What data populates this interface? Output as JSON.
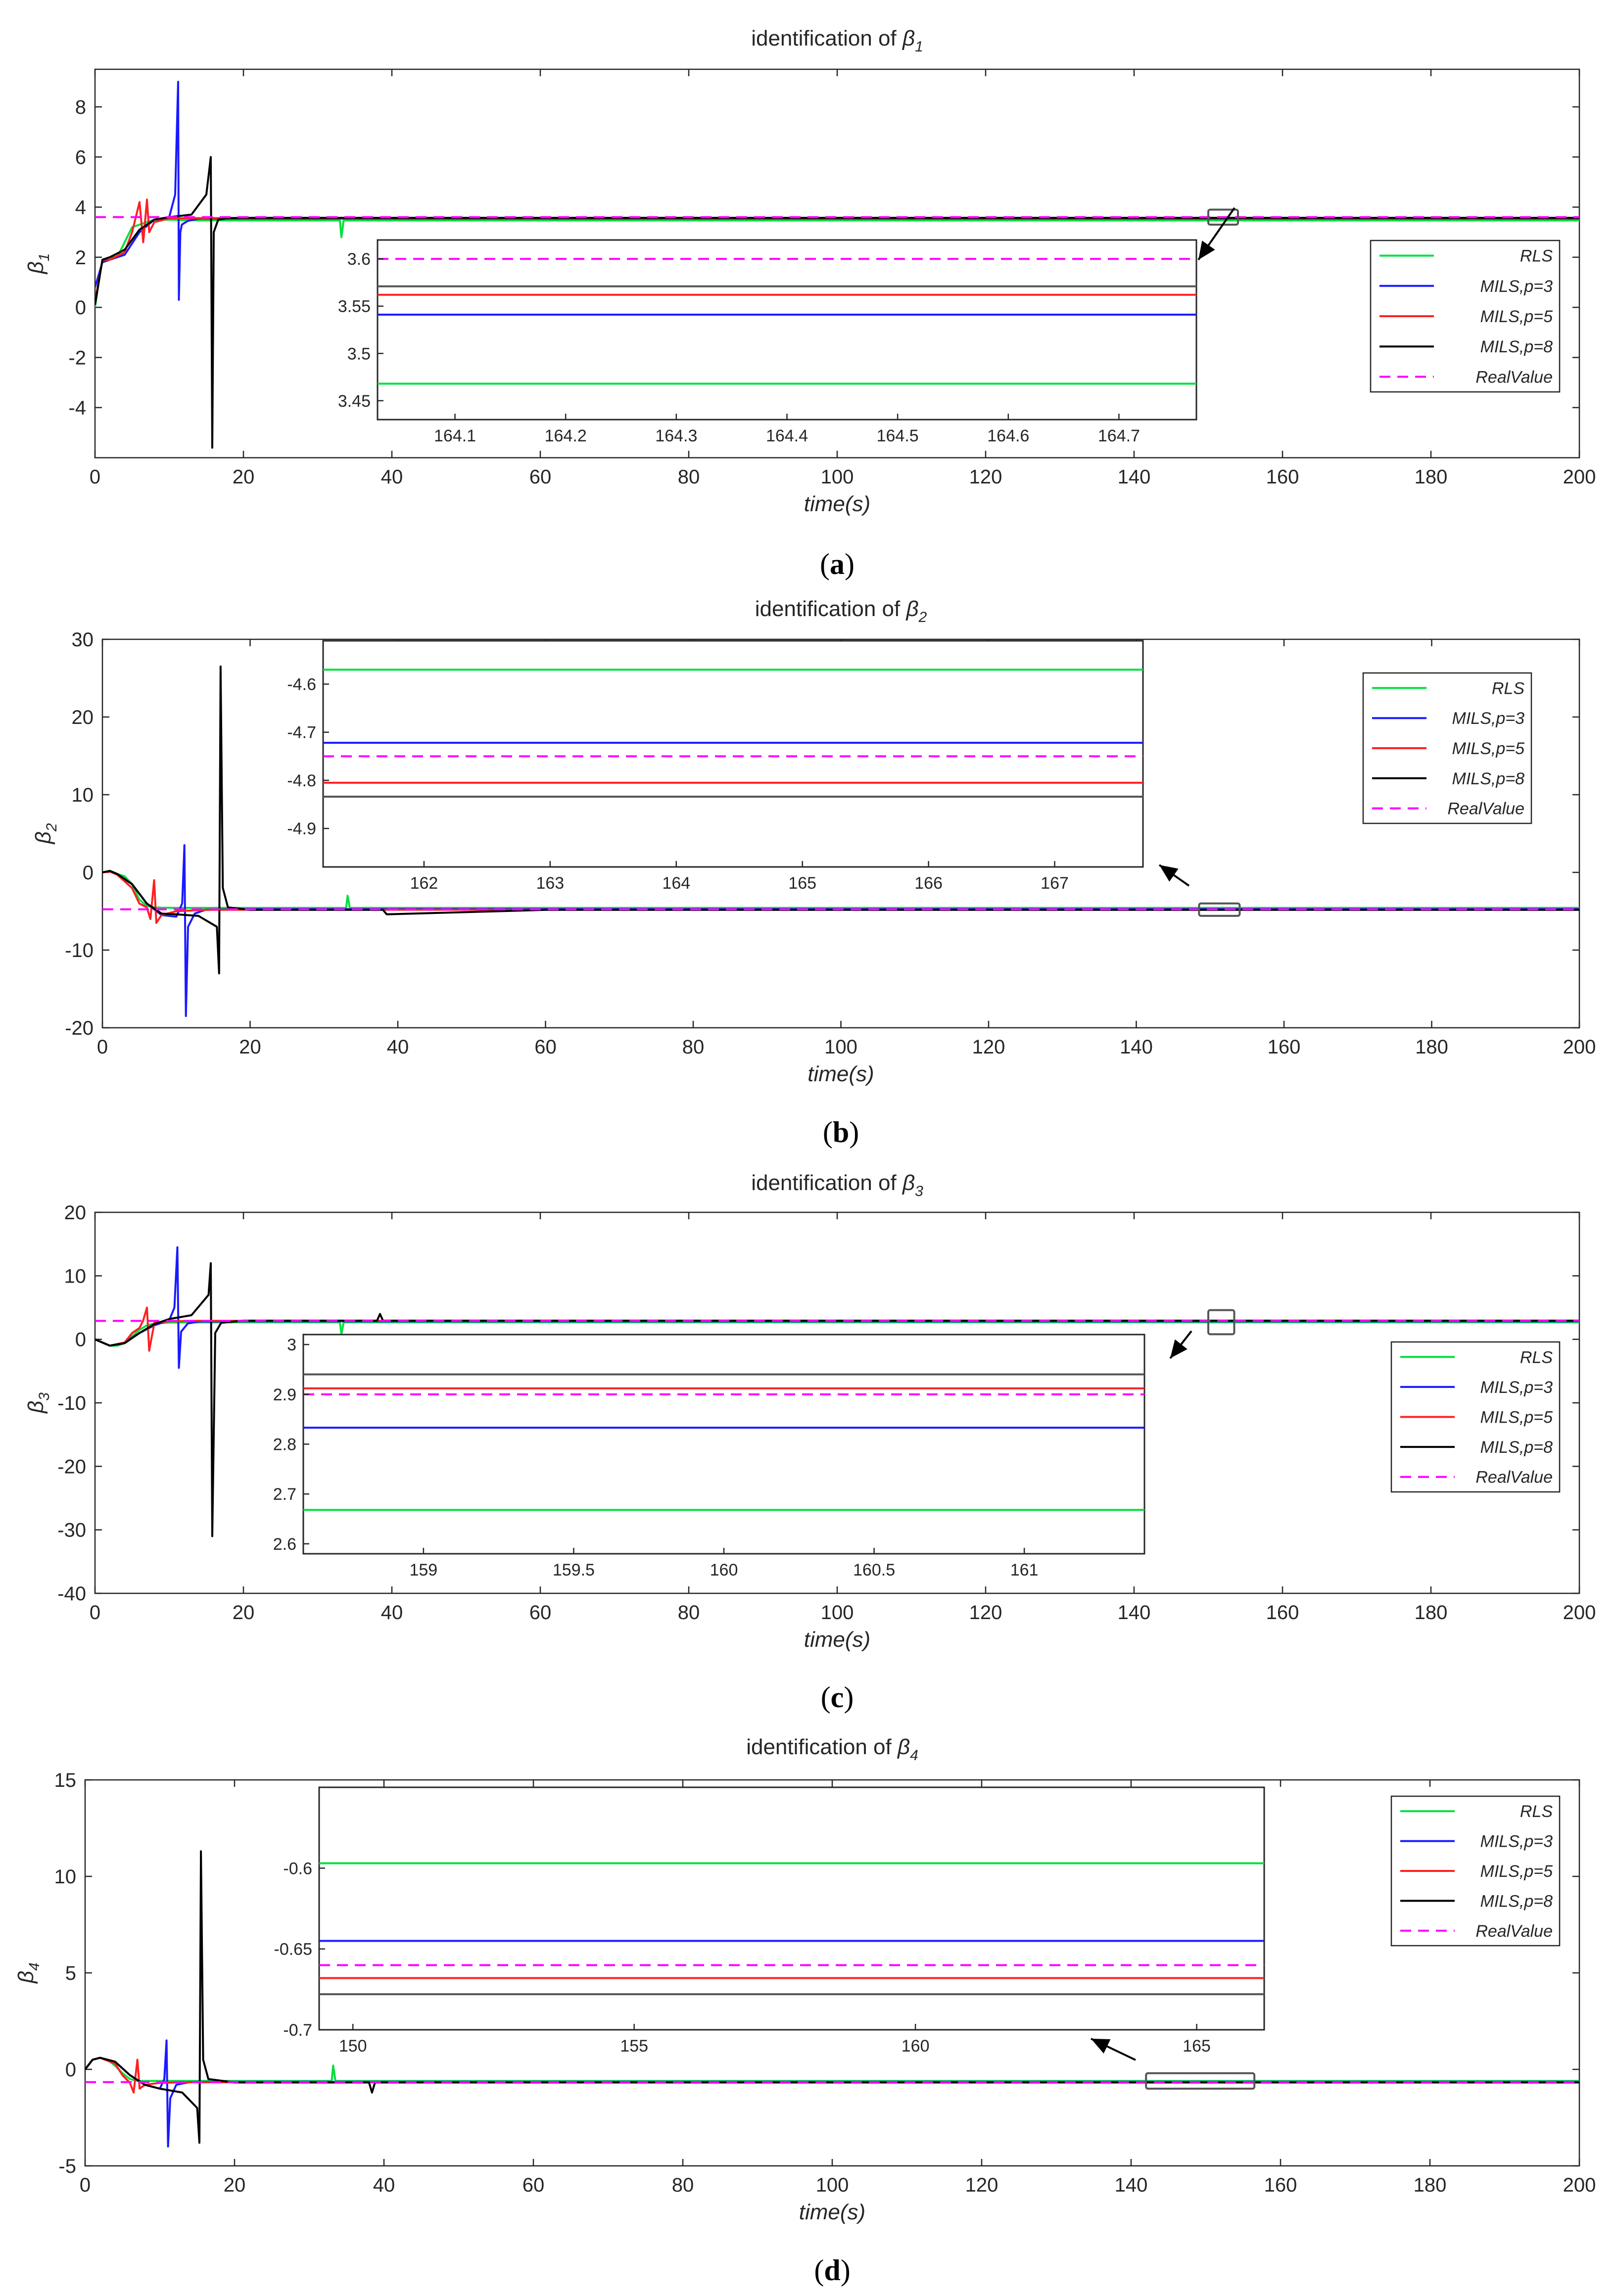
{
  "colors": {
    "RLS": "#00e03c",
    "MILS,p=3": "#1a1aff",
    "MILS,p=5": "#ff2020",
    "MILS,p=8": "#000000",
    "RealValue": "#ff00ff",
    "axes": "#262626",
    "zoom_box": "#555555"
  },
  "chart_data": [
    {
      "type": "line",
      "caption": "a",
      "title": "identification of ",
      "title_symbol": "β",
      "title_subscript": "1",
      "ylabel_symbol": "β",
      "ylabel_subscript": "1",
      "xlabel": "time(s)",
      "xlim": [
        0,
        200
      ],
      "ylim": [
        -6,
        9.5
      ],
      "xticks": [
        0,
        20,
        40,
        60,
        80,
        100,
        120,
        140,
        160,
        180,
        200
      ],
      "yticks": [
        -4,
        -2,
        0,
        2,
        4,
        6,
        8
      ],
      "legend": [
        "RLS",
        "MILS,p=3",
        "MILS,p=5",
        "MILS,p=8",
        "RealValue"
      ],
      "series": [
        {
          "name": "RLS",
          "x": [
            0,
            0.5,
            1,
            2,
            3,
            4,
            5,
            6,
            7,
            8,
            9,
            10,
            12,
            14,
            16,
            20,
            33,
            33.2,
            33.5,
            34,
            60,
            100,
            150,
            200
          ],
          "y": [
            0,
            1.0,
            1.9,
            2.0,
            2.0,
            2.6,
            3.2,
            3.3,
            3.4,
            3.5,
            3.5,
            3.5,
            3.48,
            3.47,
            3.47,
            3.47,
            3.47,
            2.8,
            3.47,
            3.47,
            3.47,
            3.47,
            3.47,
            3.47
          ]
        },
        {
          "name": "MILS,p=3",
          "x": [
            0,
            1,
            2,
            4,
            6,
            8,
            10,
            10.8,
            11.2,
            11.3,
            11.5,
            11.7,
            12.5,
            14,
            20,
            60,
            100,
            150,
            200
          ],
          "y": [
            0.8,
            1.8,
            1.9,
            2.1,
            3.0,
            3.5,
            3.6,
            4.5,
            9.0,
            0.3,
            3.0,
            3.3,
            3.45,
            3.54,
            3.54,
            3.54,
            3.54,
            3.54,
            3.54
          ]
        },
        {
          "name": "MILS,p=5",
          "x": [
            0,
            1,
            2,
            4,
            5,
            6,
            6.5,
            7,
            7.3,
            8,
            10,
            14,
            20,
            60,
            100,
            150,
            200
          ],
          "y": [
            0.2,
            1.9,
            1.9,
            2.2,
            3.0,
            4.2,
            2.6,
            4.3,
            3.0,
            3.4,
            3.55,
            3.56,
            3.56,
            3.56,
            3.56,
            3.56,
            3.56
          ]
        },
        {
          "name": "MILS,p=8",
          "x": [
            0,
            1,
            2,
            4,
            6,
            8,
            10,
            13,
            15,
            15.6,
            15.8,
            16.0,
            16.6,
            18,
            20,
            60,
            100,
            150,
            200
          ],
          "y": [
            0.1,
            1.9,
            2.0,
            2.3,
            3.1,
            3.5,
            3.6,
            3.7,
            4.5,
            6.0,
            -5.6,
            3.0,
            3.5,
            3.56,
            3.57,
            3.57,
            3.57,
            3.57,
            3.57
          ]
        },
        {
          "name": "RealValue",
          "x": [
            0,
            200
          ],
          "y": [
            3.6,
            3.6
          ]
        }
      ],
      "inset": {
        "xlim": [
          164.03,
          164.77
        ],
        "ylim": [
          3.43,
          3.62
        ],
        "xticks": [
          164.1,
          164.2,
          164.3,
          164.4,
          164.5,
          164.6,
          164.7
        ],
        "yticks": [
          3.45,
          3.5,
          3.55,
          3.6
        ],
        "levels": {
          "RLS": 3.468,
          "MILS,p=3": 3.541,
          "MILS,p=5": 3.562,
          "MILS,p=8": 3.571,
          "RealValue": 3.6
        }
      },
      "zoom_marker": {
        "x": [
          150,
          154
        ],
        "y": [
          3.3,
          3.9
        ]
      }
    },
    {
      "type": "line",
      "caption": "b",
      "title": "identification of ",
      "title_symbol": "β",
      "title_subscript": "2",
      "ylabel_symbol": "β",
      "ylabel_subscript": "2",
      "xlabel": "time(s)",
      "xlim": [
        0,
        200
      ],
      "ylim": [
        -20,
        30
      ],
      "xticks": [
        0,
        20,
        40,
        60,
        80,
        100,
        120,
        140,
        160,
        180,
        200
      ],
      "yticks": [
        -20,
        -10,
        0,
        10,
        20,
        30
      ],
      "legend": [
        "RLS",
        "MILS,p=3",
        "MILS,p=5",
        "MILS,p=8",
        "RealValue"
      ],
      "series": [
        {
          "name": "RLS",
          "x": [
            0,
            1,
            2,
            3,
            4,
            5,
            6,
            7,
            8,
            10,
            14,
            20,
            33,
            33.2,
            33.5,
            34,
            60,
            100,
            150,
            200
          ],
          "y": [
            0,
            0.2,
            -0.2,
            -0.5,
            -1.5,
            -3.5,
            -4.3,
            -4.5,
            -4.55,
            -4.57,
            -4.57,
            -4.57,
            -4.57,
            -3.0,
            -4.57,
            -4.57,
            -4.57,
            -4.57,
            -4.57,
            -4.57
          ]
        },
        {
          "name": "MILS,p=3",
          "x": [
            0,
            1,
            2,
            4,
            6,
            8,
            10,
            10.8,
            11.1,
            11.3,
            11.6,
            12.5,
            14,
            20,
            60,
            100,
            150,
            200
          ],
          "y": [
            0,
            0.2,
            -0.3,
            -1.5,
            -4.0,
            -5.5,
            -5.7,
            -4.0,
            3.5,
            -18.5,
            -7.0,
            -5.3,
            -4.8,
            -4.72,
            -4.72,
            -4.72,
            -4.72,
            -4.72
          ]
        },
        {
          "name": "MILS,p=5",
          "x": [
            0,
            1,
            2,
            4,
            5,
            6,
            6.5,
            7,
            7.3,
            8,
            10,
            14,
            20,
            60,
            100,
            150,
            200
          ],
          "y": [
            0,
            0.1,
            -0.3,
            -2.0,
            -4.0,
            -4.5,
            -6.0,
            -1.0,
            -6.5,
            -5.5,
            -5.0,
            -4.82,
            -4.81,
            -4.81,
            -4.81,
            -4.81,
            -4.81
          ]
        },
        {
          "name": "MILS,p=8",
          "x": [
            0,
            1,
            2,
            4,
            6,
            8,
            10,
            13,
            15.5,
            15.8,
            16.0,
            16.3,
            17,
            20,
            38,
            38.5,
            60,
            100,
            150,
            200
          ],
          "y": [
            0,
            0.2,
            -0.2,
            -1.5,
            -4.0,
            -5.3,
            -5.4,
            -5.6,
            -7.0,
            -13.0,
            26.5,
            -2.0,
            -4.5,
            -4.83,
            -4.83,
            -5.4,
            -4.83,
            -4.83,
            -4.83,
            -4.83
          ]
        },
        {
          "name": "RealValue",
          "x": [
            0,
            200
          ],
          "y": [
            -4.75,
            -4.75
          ]
        }
      ],
      "inset": {
        "xlim": [
          161.2,
          167.7
        ],
        "ylim": [
          -4.98,
          -4.51
        ],
        "xticks": [
          162,
          163,
          164,
          165,
          166,
          167
        ],
        "yticks": [
          -4.6,
          -4.7,
          -4.8,
          -4.9
        ],
        "levels": {
          "RLS": -4.57,
          "MILS,p=3": -4.722,
          "MILS,p=5": -4.805,
          "MILS,p=8": -4.834,
          "RealValue": -4.75
        }
      },
      "zoom_marker": {
        "x": [
          148.5,
          154
        ],
        "y": [
          -5.6,
          -4.0
        ]
      }
    },
    {
      "type": "line",
      "caption": "c",
      "title": "identification of ",
      "title_symbol": "β",
      "title_subscript": "3",
      "ylabel_symbol": "β",
      "ylabel_subscript": "3",
      "xlabel": "time(s)",
      "xlim": [
        0,
        200
      ],
      "ylim": [
        -40,
        20
      ],
      "xticks": [
        0,
        20,
        40,
        60,
        80,
        100,
        120,
        140,
        160,
        180,
        200
      ],
      "yticks": [
        -40,
        -30,
        -20,
        -10,
        0,
        10,
        20
      ],
      "legend": [
        "RLS",
        "MILS,p=3",
        "MILS,p=5",
        "MILS,p=8",
        "RealValue"
      ],
      "series": [
        {
          "name": "RLS",
          "x": [
            0,
            1,
            2,
            3,
            4,
            5,
            6,
            7,
            8,
            10,
            14,
            20,
            33,
            33.2,
            33.5,
            34,
            60,
            100,
            150,
            200
          ],
          "y": [
            0,
            -0.5,
            -1.0,
            -1.0,
            -0.6,
            0.5,
            1.5,
            2.2,
            2.5,
            2.65,
            2.67,
            2.67,
            2.67,
            0.8,
            2.67,
            2.67,
            2.67,
            2.67,
            2.67,
            2.67
          ]
        },
        {
          "name": "MILS,p=3",
          "x": [
            0,
            1,
            2,
            4,
            6,
            8,
            10,
            10.7,
            11.1,
            11.3,
            11.6,
            12.5,
            14,
            20,
            60,
            100,
            150,
            200
          ],
          "y": [
            0,
            -0.5,
            -1.0,
            -0.5,
            1.0,
            2.2,
            3.0,
            5.0,
            14.5,
            -4.5,
            1.2,
            2.5,
            2.8,
            2.83,
            2.83,
            2.83,
            2.83,
            2.83
          ]
        },
        {
          "name": "MILS,p=5",
          "x": [
            0,
            1,
            2,
            4,
            5,
            6,
            6.5,
            7,
            7.3,
            8,
            10,
            14,
            20,
            60,
            100,
            150,
            200
          ],
          "y": [
            0,
            -0.5,
            -1.0,
            -0.5,
            1.0,
            1.8,
            3.0,
            5.0,
            -1.8,
            2.6,
            2.85,
            2.91,
            2.91,
            2.91,
            2.91,
            2.91,
            2.91
          ]
        },
        {
          "name": "MILS,p=8",
          "x": [
            0,
            1,
            2,
            4,
            6,
            8,
            10,
            13,
            15.3,
            15.6,
            15.8,
            16.2,
            17,
            20,
            38,
            38.4,
            38.8,
            60,
            100,
            150,
            200
          ],
          "y": [
            0,
            -0.5,
            -1.0,
            -0.6,
            1.0,
            2.4,
            3.2,
            3.8,
            7.0,
            12.0,
            -31.0,
            1.0,
            2.6,
            2.94,
            2.94,
            4.0,
            2.94,
            2.94,
            2.94,
            2.94,
            2.94
          ]
        },
        {
          "name": "RealValue",
          "x": [
            0,
            200
          ],
          "y": [
            2.9,
            2.9
          ]
        }
      ],
      "inset": {
        "xlim": [
          158.6,
          161.4
        ],
        "ylim": [
          2.58,
          3.02
        ],
        "xticks": [
          159,
          159.5,
          160,
          160.5,
          161
        ],
        "yticks": [
          3,
          2.9,
          2.8,
          2.7,
          2.6
        ],
        "levels": {
          "RLS": 2.668,
          "MILS,p=3": 2.833,
          "MILS,p=5": 2.912,
          "MILS,p=8": 2.94,
          "RealValue": 2.9
        }
      },
      "zoom_marker": {
        "x": [
          150,
          153.5
        ],
        "y": [
          0.8,
          4.6
        ]
      }
    },
    {
      "type": "line",
      "caption": "d",
      "title": "identification of ",
      "title_symbol": "β",
      "title_subscript": "4",
      "ylabel_symbol": "β",
      "ylabel_subscript": "4",
      "xlabel": "time(s)",
      "xlim": [
        0,
        200
      ],
      "ylim": [
        -5,
        15
      ],
      "xticks": [
        0,
        20,
        40,
        60,
        80,
        100,
        120,
        140,
        160,
        180,
        200
      ],
      "yticks": [
        -5,
        0,
        5,
        10,
        15
      ],
      "legend": [
        "RLS",
        "MILS,p=3",
        "MILS,p=5",
        "MILS,p=8",
        "RealValue"
      ],
      "series": [
        {
          "name": "RLS",
          "x": [
            0,
            1,
            2,
            3,
            4,
            5,
            6,
            7,
            8,
            10,
            14,
            20,
            33,
            33.2,
            33.5,
            34,
            60,
            100,
            150,
            200
          ],
          "y": [
            0,
            0.5,
            0.6,
            0.5,
            0.2,
            -0.2,
            -0.5,
            -0.6,
            -0.6,
            -0.6,
            -0.6,
            -0.6,
            -0.6,
            0.2,
            -0.6,
            -0.6,
            -0.6,
            -0.6,
            -0.6,
            -0.6
          ]
        },
        {
          "name": "MILS,p=3",
          "x": [
            0,
            1,
            2,
            4,
            6,
            8,
            10,
            10.6,
            10.9,
            11.1,
            11.4,
            12.2,
            14,
            20,
            60,
            100,
            150,
            200
          ],
          "y": [
            0,
            0.5,
            0.6,
            0.4,
            -0.3,
            -0.8,
            -1.0,
            -0.5,
            1.5,
            -4.0,
            -1.5,
            -0.8,
            -0.66,
            -0.645,
            -0.645,
            -0.645,
            -0.645,
            -0.645
          ]
        },
        {
          "name": "MILS,p=5",
          "x": [
            0,
            1,
            2,
            4,
            5,
            6,
            6.5,
            7,
            7.3,
            8,
            10,
            14,
            20,
            60,
            100,
            150,
            200
          ],
          "y": [
            0,
            0.5,
            0.6,
            0.3,
            -0.3,
            -0.7,
            -1.2,
            0.5,
            -1.0,
            -0.8,
            -0.7,
            -0.67,
            -0.67,
            -0.67,
            -0.67,
            -0.67,
            -0.67
          ]
        },
        {
          "name": "MILS,p=8",
          "x": [
            0,
            1,
            2,
            4,
            6,
            8,
            10,
            13,
            15.0,
            15.3,
            15.5,
            15.8,
            16.5,
            20,
            38,
            38.4,
            38.8,
            60,
            100,
            150,
            200
          ],
          "y": [
            0,
            0.5,
            0.6,
            0.4,
            -0.3,
            -0.8,
            -1.0,
            -1.2,
            -2.0,
            -3.8,
            11.3,
            0.5,
            -0.5,
            -0.68,
            -0.68,
            -1.2,
            -0.68,
            -0.68,
            -0.68,
            -0.68,
            -0.68
          ]
        },
        {
          "name": "RealValue",
          "x": [
            0,
            200
          ],
          "y": [
            -0.66,
            -0.66
          ]
        }
      ],
      "inset": {
        "xlim": [
          149.4,
          166.2
        ],
        "ylim": [
          -0.7,
          -0.55
        ],
        "xticks": [
          150,
          155,
          160,
          165
        ],
        "yticks": [
          -0.6,
          -0.65,
          -0.7
        ],
        "levels": {
          "RLS": -0.597,
          "MILS,p=3": -0.645,
          "MILS,p=5": -0.668,
          "MILS,p=8": -0.678,
          "RealValue": -0.66
        }
      },
      "zoom_marker": {
        "x": [
          142,
          156.5
        ],
        "y": [
          -1.0,
          -0.2
        ]
      }
    }
  ]
}
